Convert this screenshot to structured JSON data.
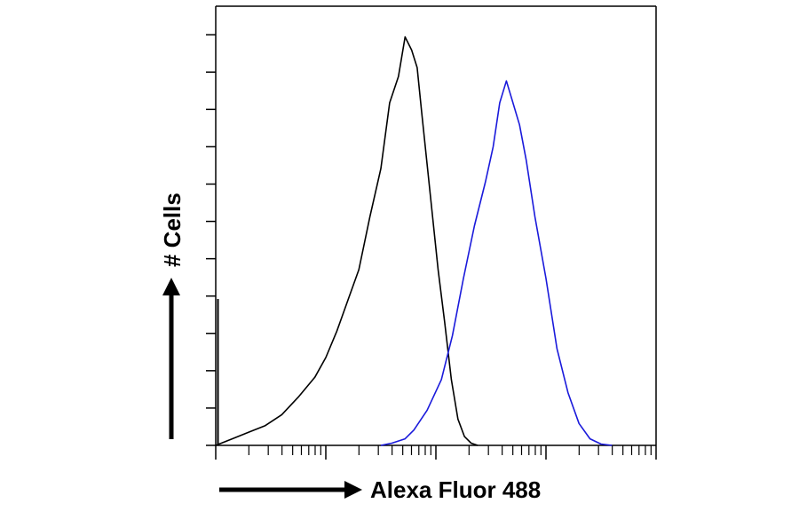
{
  "chart_data": {
    "type": "line",
    "title": "",
    "xlabel": "Alexa Fluor 488",
    "ylabel": "# Cells",
    "x_scale": "log",
    "xlim": [
      0,
      4
    ],
    "ylim": [
      0,
      100
    ],
    "grid": false,
    "legend": "none",
    "colors": {
      "control": "#000000",
      "sample": "#1a1adb"
    },
    "series": [
      {
        "key": "control",
        "x": [
          0.0,
          0.15,
          0.3,
          0.45,
          0.6,
          0.75,
          0.9,
          1.0,
          1.1,
          1.2,
          1.3,
          1.4,
          1.5,
          1.58,
          1.66,
          1.72,
          1.78,
          1.83,
          1.87,
          1.92,
          1.97,
          2.02,
          2.08,
          2.14,
          2.2,
          2.26,
          2.32,
          2.38
        ],
        "y": [
          0,
          1.5,
          3,
          4.5,
          7,
          11,
          15.5,
          20,
          26,
          33,
          40,
          52,
          63,
          78,
          84,
          93,
          90,
          86,
          76,
          64,
          52,
          40,
          28,
          15,
          6,
          2,
          0.5,
          0
        ]
      },
      {
        "key": "sample",
        "x": [
          1.5,
          1.6,
          1.72,
          1.8,
          1.92,
          2.05,
          2.15,
          2.25,
          2.35,
          2.45,
          2.52,
          2.58,
          2.64,
          2.7,
          2.76,
          2.82,
          2.9,
          3.0,
          3.1,
          3.2,
          3.3,
          3.4,
          3.5,
          3.6
        ],
        "y": [
          0,
          0.5,
          1.5,
          3.5,
          8,
          15,
          25,
          38,
          50,
          60,
          68,
          78,
          83,
          78,
          73,
          65,
          52,
          38,
          22,
          12,
          5,
          1.5,
          0.3,
          0
        ]
      }
    ]
  }
}
